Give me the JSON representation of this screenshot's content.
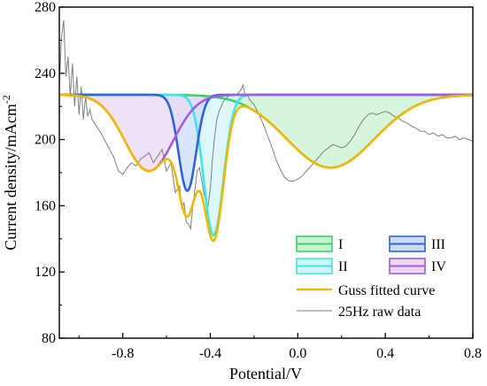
{
  "chart_data": {
    "type": "area",
    "xlabel": "Potential/V",
    "ylabel": "Current density/mAcm",
    "ylabel_sup": "-2",
    "xlim": [
      -1.09,
      0.8
    ],
    "ylim": [
      80,
      280
    ],
    "xticks": [
      -0.8,
      -0.4,
      0.0,
      0.4,
      0.8
    ],
    "xtick_labels": [
      "-0.8",
      "-0.4",
      "0.0",
      "0.4",
      "0.8"
    ],
    "yticks": [
      80,
      120,
      160,
      200,
      240,
      280
    ],
    "ytick_labels": [
      "80",
      "120",
      "160",
      "200",
      "240",
      "280"
    ],
    "baseline": 227,
    "peaks": [
      {
        "name": "I",
        "color": "#3cd26a",
        "fill": "#c8f2d2",
        "center": 0.15,
        "depth": 44,
        "width": 0.2
      },
      {
        "name": "II",
        "color": "#3ee6e8",
        "fill": "#d2f6f8",
        "center": -0.385,
        "depth": 85,
        "width": 0.045
      },
      {
        "name": "III",
        "color": "#2f64e0",
        "fill": "#ccdcf8",
        "center": -0.505,
        "depth": 58,
        "width": 0.04
      },
      {
        "name": "IV",
        "color": "#a45ce0",
        "fill": "#ead8f6",
        "center": -0.68,
        "depth": 46,
        "width": 0.11
      }
    ],
    "raw_data": {
      "name": "25Hz raw data",
      "color": "#808080",
      "x": [
        -1.09,
        -1.08,
        -1.07,
        -1.06,
        -1.05,
        -1.04,
        -1.03,
        -1.02,
        -1.01,
        -1.0,
        -0.99,
        -0.98,
        -0.97,
        -0.96,
        -0.95,
        -0.94,
        -0.92,
        -0.9,
        -0.88,
        -0.86,
        -0.84,
        -0.82,
        -0.8,
        -0.78,
        -0.76,
        -0.74,
        -0.72,
        -0.7,
        -0.68,
        -0.66,
        -0.64,
        -0.62,
        -0.6,
        -0.58,
        -0.56,
        -0.54,
        -0.53,
        -0.52,
        -0.51,
        -0.5,
        -0.49,
        -0.48,
        -0.47,
        -0.46,
        -0.45,
        -0.44,
        -0.43,
        -0.42,
        -0.41,
        -0.4,
        -0.39,
        -0.38,
        -0.37,
        -0.36,
        -0.34,
        -0.32,
        -0.3,
        -0.28,
        -0.26,
        -0.25,
        -0.24,
        -0.23,
        -0.22,
        -0.2,
        -0.18,
        -0.16,
        -0.14,
        -0.12,
        -0.1,
        -0.08,
        -0.06,
        -0.04,
        -0.02,
        0.0,
        0.02,
        0.04,
        0.06,
        0.08,
        0.1,
        0.12,
        0.14,
        0.16,
        0.18,
        0.2,
        0.22,
        0.24,
        0.26,
        0.28,
        0.3,
        0.32,
        0.34,
        0.36,
        0.38,
        0.4,
        0.42,
        0.44,
        0.46,
        0.48,
        0.5,
        0.52,
        0.54,
        0.56,
        0.58,
        0.6,
        0.62,
        0.64,
        0.66,
        0.68,
        0.7,
        0.72,
        0.74,
        0.76,
        0.78,
        0.8
      ],
      "y": [
        232,
        262,
        272,
        238,
        250,
        226,
        246,
        220,
        238,
        215,
        232,
        212,
        226,
        214,
        218,
        212,
        208,
        204,
        199,
        194,
        189,
        181,
        179,
        183,
        186,
        184,
        188,
        190,
        192,
        186,
        190,
        194,
        181,
        186,
        168,
        172,
        158,
        162,
        150,
        149,
        146,
        160,
        170,
        181,
        183,
        176,
        168,
        162,
        160,
        170,
        188,
        202,
        212,
        217,
        223,
        226,
        227,
        227,
        230,
        233,
        226,
        227,
        224,
        221,
        216,
        210,
        203,
        196,
        188,
        182,
        177,
        175,
        175,
        176,
        178,
        181,
        184,
        187,
        190,
        193,
        195,
        197,
        196,
        195,
        196,
        199,
        203,
        208,
        212,
        215,
        216,
        215,
        216,
        217,
        216,
        214,
        213,
        211,
        210,
        208,
        207,
        205,
        205,
        203,
        204,
        202,
        203,
        201,
        201,
        202,
        200,
        201,
        200,
        199
      ]
    },
    "legend": {
      "placement": "bottom-right",
      "peak_entries": [
        "I",
        "III",
        "II",
        "IV"
      ],
      "fit_label": "Guss fitted curve",
      "fit_color": "#f2b800",
      "raw_label": "25Hz raw data"
    }
  }
}
